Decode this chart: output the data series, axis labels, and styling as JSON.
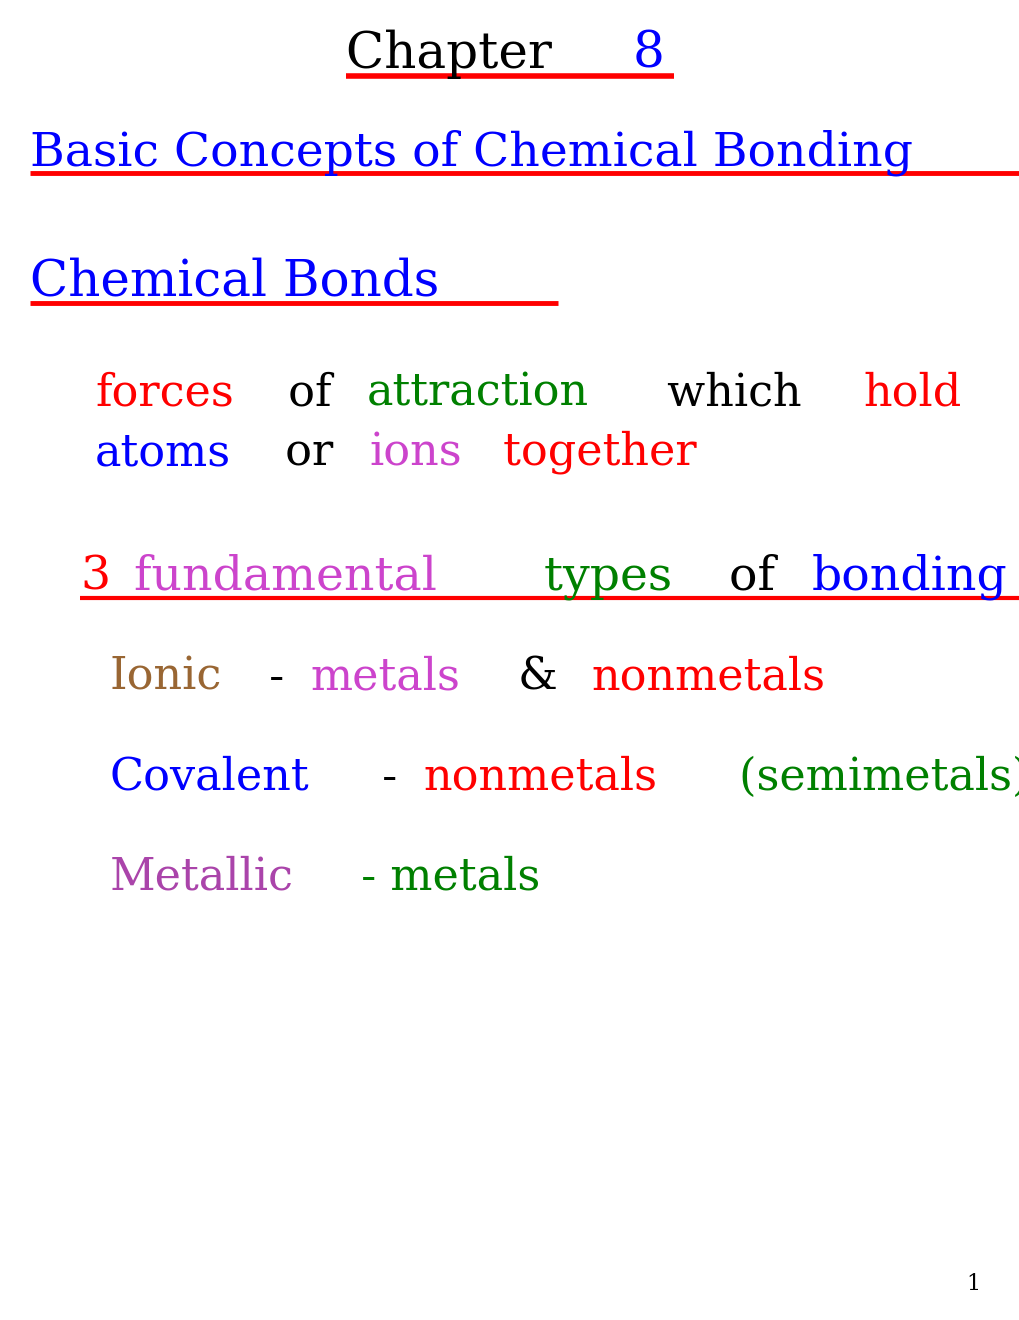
{
  "background_color": "#ffffff",
  "figsize": [
    10.2,
    13.2
  ],
  "dpi": 100,
  "page_number": "1",
  "chapter_text": "Chapter ",
  "chapter_num": "8",
  "chapter_num_color": "#0000ff",
  "chapter_text_color": "#000000",
  "underline_color": "#ff0000",
  "subtitle": "Basic Concepts of Chemical Bonding",
  "subtitle_color": "#0000ff",
  "section": "Chemical Bonds",
  "section_color": "#0000ff",
  "line1_parts": [
    {
      "text": "forces",
      "color": "#ff0000"
    },
    {
      "text": " of ",
      "color": "#000000"
    },
    {
      "text": "attraction",
      "color": "#008000"
    },
    {
      "text": " which ",
      "color": "#000000"
    },
    {
      "text": "hold",
      "color": "#ff0000"
    }
  ],
  "line2_parts": [
    {
      "text": "atoms",
      "color": "#0000ff"
    },
    {
      "text": " or ",
      "color": "#000000"
    },
    {
      "text": "ions",
      "color": "#cc44cc"
    },
    {
      "text": " together",
      "color": "#ff0000"
    }
  ],
  "fundamental_parts": [
    {
      "text": "3",
      "color": "#ff0000"
    },
    {
      "text": " fundamental",
      "color": "#cc44cc"
    },
    {
      "text": " types",
      "color": "#008000"
    },
    {
      "text": " of ",
      "color": "#000000"
    },
    {
      "text": "bonding",
      "color": "#0000ff"
    }
  ],
  "ionic_parts": [
    {
      "text": "Ionic",
      "color": "#996633"
    },
    {
      "text": " - ",
      "color": "#000000"
    },
    {
      "text": "metals",
      "color": "#cc44cc"
    },
    {
      "text": " & ",
      "color": "#000000"
    },
    {
      "text": "nonmetals",
      "color": "#ff0000"
    }
  ],
  "covalent_parts": [
    {
      "text": "Covalent",
      "color": "#0000ff"
    },
    {
      "text": " - ",
      "color": "#000000"
    },
    {
      "text": "nonmetals",
      "color": "#ff0000"
    },
    {
      "text": " (semimetals)",
      "color": "#008000"
    }
  ],
  "metallic_parts": [
    {
      "text": "Metallic",
      "color": "#aa44aa"
    },
    {
      "text": " - metals",
      "color": "#008000"
    }
  ],
  "font_size_title": 36,
  "font_size_subtitle": 34,
  "font_size_section": 36,
  "font_size_body": 32,
  "font_size_fund": 34,
  "font_size_ionic": 32
}
